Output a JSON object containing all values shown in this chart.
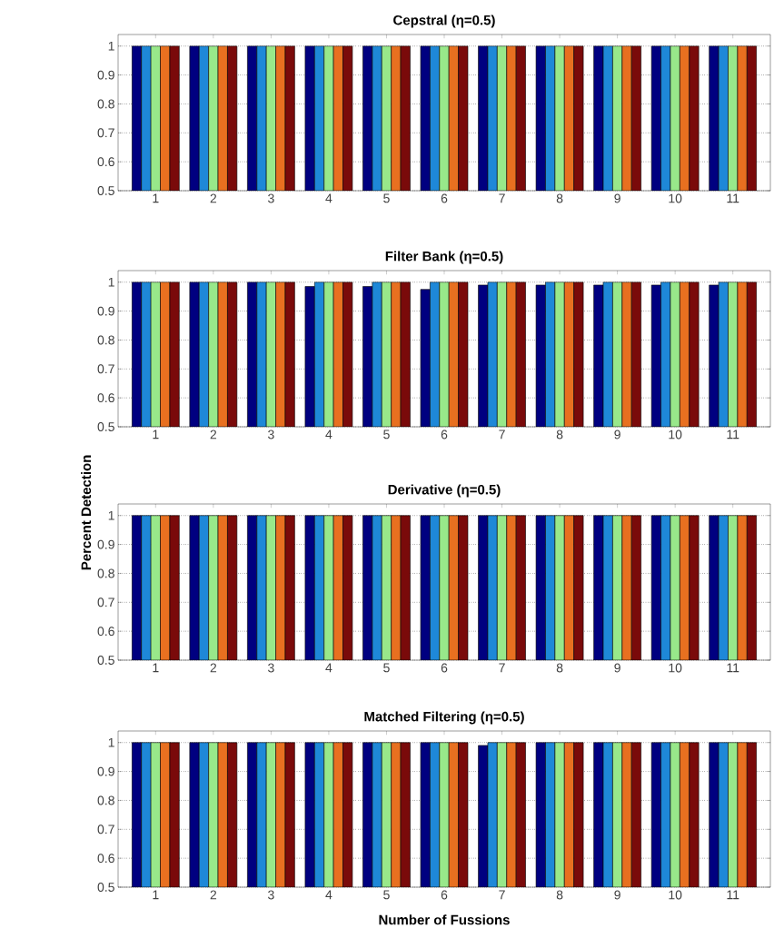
{
  "chart_data": [
    {
      "type": "bar",
      "title": "Cepstral (η=0.5)",
      "categories": [
        "1",
        "2",
        "3",
        "4",
        "5",
        "6",
        "7",
        "8",
        "9",
        "10",
        "11"
      ],
      "ylim": [
        0.5,
        1.04
      ],
      "yticks": [
        0.5,
        0.6,
        0.7,
        0.8,
        0.9,
        1
      ],
      "grid": "y",
      "series": [
        {
          "color": "#000080",
          "values": [
            1,
            1,
            1,
            1,
            1,
            1,
            1,
            1,
            1,
            1,
            1
          ]
        },
        {
          "color": "#1e88d8",
          "values": [
            1,
            1,
            1,
            1,
            1,
            1,
            1,
            1,
            1,
            1,
            1
          ]
        },
        {
          "color": "#98e88a",
          "values": [
            1,
            1,
            1,
            1,
            1,
            1,
            1,
            1,
            1,
            1,
            1
          ]
        },
        {
          "color": "#e87020",
          "values": [
            1,
            1,
            1,
            1,
            1,
            1,
            1,
            1,
            1,
            1,
            1
          ]
        },
        {
          "color": "#7a0a0a",
          "values": [
            1,
            1,
            1,
            1,
            1,
            1,
            1,
            1,
            1,
            1,
            1
          ]
        }
      ]
    },
    {
      "type": "bar",
      "title": "Filter Bank (η=0.5)",
      "ylabel": "Percent Detection",
      "categories": [
        "1",
        "2",
        "3",
        "4",
        "5",
        "6",
        "7",
        "8",
        "9",
        "10",
        "11"
      ],
      "ylim": [
        0.5,
        1.04
      ],
      "yticks": [
        0.5,
        0.6,
        0.7,
        0.8,
        0.9,
        1
      ],
      "grid": "y",
      "series": [
        {
          "color": "#000080",
          "values": [
            1,
            1,
            1,
            0.985,
            0.985,
            0.975,
            0.99,
            0.99,
            0.99,
            0.99,
            0.99
          ]
        },
        {
          "color": "#1e88d8",
          "values": [
            1,
            1,
            1,
            1,
            1,
            1,
            1,
            1,
            1,
            1,
            1
          ]
        },
        {
          "color": "#98e88a",
          "values": [
            1,
            1,
            1,
            1,
            1,
            1,
            1,
            1,
            1,
            1,
            1
          ]
        },
        {
          "color": "#e87020",
          "values": [
            1,
            1,
            1,
            1,
            1,
            1,
            1,
            1,
            1,
            1,
            1
          ]
        },
        {
          "color": "#7a0a0a",
          "values": [
            1,
            1,
            1,
            1,
            1,
            1,
            1,
            1,
            1,
            1,
            1
          ]
        }
      ]
    },
    {
      "type": "bar",
      "title": "Derivative (η=0.5)",
      "categories": [
        "1",
        "2",
        "3",
        "4",
        "5",
        "6",
        "7",
        "8",
        "9",
        "10",
        "11"
      ],
      "ylim": [
        0.5,
        1.04
      ],
      "yticks": [
        0.5,
        0.6,
        0.7,
        0.8,
        0.9,
        1
      ],
      "grid": "y",
      "series": [
        {
          "color": "#000080",
          "values": [
            1,
            1,
            1,
            1,
            1,
            1,
            1,
            1,
            1,
            1,
            1
          ]
        },
        {
          "color": "#1e88d8",
          "values": [
            1,
            1,
            1,
            1,
            1,
            1,
            1,
            1,
            1,
            1,
            1
          ]
        },
        {
          "color": "#98e88a",
          "values": [
            1,
            1,
            1,
            1,
            1,
            1,
            1,
            1,
            1,
            1,
            1
          ]
        },
        {
          "color": "#e87020",
          "values": [
            1,
            1,
            1,
            1,
            1,
            1,
            1,
            1,
            1,
            1,
            1
          ]
        },
        {
          "color": "#7a0a0a",
          "values": [
            1,
            1,
            1,
            1,
            1,
            1,
            1,
            1,
            1,
            1,
            1
          ]
        }
      ]
    },
    {
      "type": "bar",
      "title": "Matched Filtering (η=0.5)",
      "xlabel": "Number of Fussions",
      "categories": [
        "1",
        "2",
        "3",
        "4",
        "5",
        "6",
        "7",
        "8",
        "9",
        "10",
        "11"
      ],
      "ylim": [
        0.5,
        1.04
      ],
      "yticks": [
        0.5,
        0.6,
        0.7,
        0.8,
        0.9,
        1
      ],
      "grid": "y",
      "series": [
        {
          "color": "#000080",
          "values": [
            1,
            1,
            1,
            1,
            1,
            1,
            0.99,
            1,
            1,
            1,
            1
          ]
        },
        {
          "color": "#1e88d8",
          "values": [
            1,
            1,
            1,
            1,
            1,
            1,
            1,
            1,
            1,
            1,
            1
          ]
        },
        {
          "color": "#98e88a",
          "values": [
            1,
            1,
            1,
            1,
            1,
            1,
            1,
            1,
            1,
            1,
            1
          ]
        },
        {
          "color": "#e87020",
          "values": [
            1,
            1,
            1,
            1,
            1,
            1,
            1,
            1,
            1,
            1,
            1
          ]
        },
        {
          "color": "#7a0a0a",
          "values": [
            1,
            1,
            1,
            1,
            1,
            1,
            1,
            1,
            1,
            1,
            1
          ]
        }
      ]
    }
  ]
}
